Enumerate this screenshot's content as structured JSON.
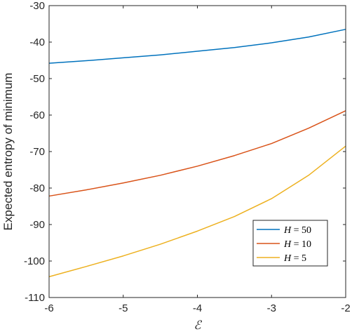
{
  "chart_data": {
    "type": "line",
    "xlabel": "ℰ",
    "ylabel": "Expected entropy of minimum",
    "xlim": [
      -6,
      -2
    ],
    "ylim": [
      -110,
      -30
    ],
    "xticks": [
      -6,
      -5,
      -4,
      -3,
      -2
    ],
    "yticks": [
      -110,
      -100,
      -90,
      -80,
      -70,
      -60,
      -50,
      -40,
      -30
    ],
    "grid": false,
    "box": true,
    "legend_location": "bottom-right",
    "series": [
      {
        "name": "H = 50",
        "legend_symbol": "H",
        "legend_value": "= 50",
        "color": "#0072BD",
        "x": [
          -6,
          -5.5,
          -5,
          -4.5,
          -4,
          -3.5,
          -3,
          -2.5,
          -2
        ],
        "y": [
          -45.8,
          -45.1,
          -44.3,
          -43.5,
          -42.5,
          -41.5,
          -40.2,
          -38.6,
          -36.5
        ]
      },
      {
        "name": "H = 10",
        "legend_symbol": "H",
        "legend_value": "= 10",
        "color": "#D95319",
        "x": [
          -6,
          -5.5,
          -5,
          -4.5,
          -4,
          -3.5,
          -3,
          -2.5,
          -2
        ],
        "y": [
          -82.2,
          -80.5,
          -78.6,
          -76.5,
          -74.0,
          -71.1,
          -67.8,
          -63.6,
          -58.8
        ]
      },
      {
        "name": "H = 5",
        "legend_symbol": "H",
        "legend_value": "= 5",
        "color": "#EDB120",
        "x": [
          -6,
          -5.5,
          -5,
          -4.5,
          -4,
          -3.5,
          -3,
          -2.5,
          -2
        ],
        "y": [
          -104.3,
          -101.5,
          -98.6,
          -95.4,
          -91.8,
          -87.8,
          -82.9,
          -76.5,
          -68.5
        ]
      }
    ]
  }
}
